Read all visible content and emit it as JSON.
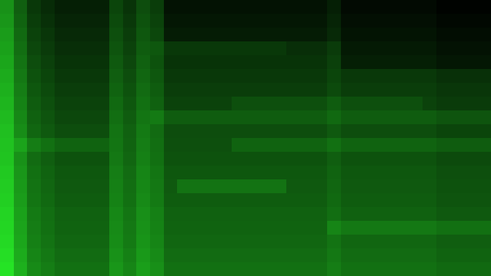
{
  "chart_data": {
    "type": "heatmap",
    "color": "#2aff2a",
    "tick_labels": false,
    "zlim": [
      0,
      100
    ],
    "z": [
      [
        57,
        37,
        22,
        17,
        12,
        12,
        12,
        12,
        27,
        20,
        30,
        24,
        7,
        7,
        7,
        7,
        7,
        7,
        7,
        7,
        7,
        7,
        7,
        7,
        12,
        4,
        4,
        4,
        4,
        4,
        4,
        4,
        1,
        1,
        1,
        1
      ],
      [
        59,
        39,
        24,
        19,
        14,
        14,
        14,
        14,
        29,
        22,
        32,
        26,
        9,
        9,
        9,
        9,
        9,
        9,
        9,
        9,
        9,
        9,
        9,
        9,
        14,
        6,
        6,
        6,
        6,
        6,
        6,
        6,
        3,
        3,
        3,
        3
      ],
      [
        61,
        41,
        26,
        21,
        16,
        16,
        16,
        16,
        31,
        24,
        34,
        28,
        11,
        11,
        11,
        11,
        11,
        11,
        11,
        11,
        11,
        11,
        11,
        11,
        16,
        8,
        8,
        8,
        8,
        8,
        8,
        8,
        5,
        5,
        5,
        5
      ],
      [
        63,
        43,
        28,
        23,
        18,
        18,
        18,
        18,
        33,
        26,
        36,
        34,
        22,
        22,
        22,
        22,
        22,
        22,
        22,
        22,
        22,
        18,
        18,
        18,
        23,
        10,
        10,
        10,
        10,
        10,
        10,
        10,
        7,
        7,
        7,
        7
      ],
      [
        65,
        45,
        30,
        25,
        20,
        20,
        20,
        20,
        35,
        28,
        38,
        32,
        20,
        20,
        20,
        20,
        20,
        20,
        20,
        20,
        20,
        20,
        20,
        20,
        25,
        12,
        12,
        12,
        12,
        12,
        12,
        12,
        9,
        9,
        9,
        9
      ],
      [
        67,
        47,
        32,
        27,
        22,
        22,
        22,
        22,
        37,
        30,
        40,
        34,
        22,
        22,
        22,
        22,
        22,
        22,
        22,
        22,
        22,
        22,
        22,
        22,
        27,
        22,
        22,
        22,
        22,
        22,
        22,
        22,
        19,
        19,
        19,
        19
      ],
      [
        69,
        49,
        34,
        29,
        24,
        24,
        24,
        24,
        39,
        32,
        42,
        36,
        24,
        24,
        24,
        24,
        24,
        24,
        24,
        24,
        24,
        24,
        24,
        24,
        29,
        24,
        24,
        24,
        24,
        24,
        24,
        24,
        21,
        21,
        21,
        21
      ],
      [
        71,
        51,
        36,
        31,
        26,
        26,
        26,
        26,
        41,
        34,
        44,
        38,
        26,
        26,
        26,
        26,
        26,
        31,
        31,
        31,
        31,
        31,
        31,
        31,
        36,
        31,
        31,
        31,
        31,
        31,
        31,
        26,
        23,
        23,
        23,
        23
      ],
      [
        73,
        53,
        38,
        33,
        28,
        28,
        28,
        28,
        43,
        36,
        46,
        48,
        36,
        36,
        36,
        36,
        36,
        36,
        36,
        36,
        36,
        36,
        36,
        36,
        41,
        36,
        36,
        36,
        36,
        36,
        36,
        36,
        33,
        33,
        33,
        33
      ],
      [
        75,
        55,
        40,
        35,
        30,
        30,
        30,
        30,
        45,
        38,
        48,
        42,
        30,
        30,
        30,
        30,
        30,
        30,
        30,
        30,
        30,
        30,
        30,
        30,
        35,
        30,
        30,
        30,
        30,
        30,
        30,
        30,
        27,
        27,
        27,
        27
      ],
      [
        76,
        64,
        49,
        44,
        39,
        39,
        39,
        39,
        46,
        39,
        49,
        43,
        31,
        31,
        31,
        31,
        31,
        39,
        39,
        39,
        39,
        39,
        39,
        39,
        44,
        39,
        39,
        39,
        39,
        39,
        39,
        39,
        36,
        36,
        36,
        36
      ],
      [
        77,
        57,
        42,
        37,
        32,
        32,
        32,
        32,
        47,
        40,
        50,
        44,
        32,
        32,
        32,
        32,
        32,
        32,
        32,
        32,
        32,
        32,
        32,
        32,
        37,
        32,
        32,
        32,
        32,
        32,
        32,
        32,
        29,
        29,
        29,
        29
      ],
      [
        79,
        59,
        44,
        39,
        34,
        34,
        34,
        34,
        49,
        42,
        52,
        46,
        34,
        34,
        34,
        34,
        34,
        34,
        34,
        34,
        34,
        34,
        34,
        34,
        39,
        34,
        34,
        34,
        34,
        34,
        34,
        34,
        31,
        31,
        31,
        31
      ],
      [
        80,
        60,
        45,
        40,
        35,
        35,
        35,
        35,
        50,
        43,
        53,
        47,
        35,
        45,
        45,
        45,
        45,
        45,
        45,
        45,
        45,
        35,
        35,
        35,
        40,
        35,
        35,
        35,
        35,
        35,
        35,
        35,
        32,
        32,
        32,
        32
      ],
      [
        81,
        61,
        46,
        41,
        36,
        36,
        36,
        36,
        51,
        44,
        54,
        48,
        36,
        36,
        36,
        36,
        36,
        36,
        36,
        36,
        36,
        36,
        36,
        36,
        41,
        36,
        36,
        36,
        36,
        36,
        36,
        36,
        33,
        33,
        33,
        33
      ],
      [
        83,
        63,
        48,
        43,
        38,
        38,
        38,
        38,
        53,
        46,
        56,
        50,
        38,
        38,
        38,
        38,
        38,
        38,
        38,
        38,
        38,
        38,
        38,
        38,
        43,
        38,
        38,
        38,
        38,
        38,
        38,
        38,
        35,
        35,
        35,
        35
      ],
      [
        84,
        64,
        49,
        44,
        39,
        39,
        39,
        39,
        54,
        47,
        57,
        51,
        39,
        39,
        39,
        39,
        39,
        39,
        39,
        39,
        39,
        39,
        39,
        39,
        52,
        47,
        47,
        47,
        47,
        47,
        47,
        47,
        44,
        44,
        44,
        44
      ],
      [
        85,
        65,
        50,
        45,
        40,
        40,
        40,
        40,
        55,
        48,
        58,
        52,
        40,
        40,
        40,
        40,
        40,
        40,
        40,
        40,
        40,
        40,
        40,
        40,
        45,
        40,
        40,
        40,
        40,
        40,
        40,
        40,
        37,
        37,
        37,
        37
      ],
      [
        87,
        67,
        52,
        47,
        42,
        42,
        42,
        42,
        57,
        50,
        60,
        54,
        42,
        42,
        42,
        42,
        42,
        42,
        42,
        42,
        42,
        42,
        42,
        42,
        47,
        42,
        42,
        42,
        42,
        42,
        42,
        42,
        39,
        39,
        39,
        39
      ],
      [
        89,
        69,
        54,
        49,
        44,
        44,
        44,
        44,
        59,
        52,
        62,
        56,
        44,
        44,
        44,
        44,
        44,
        44,
        44,
        44,
        44,
        44,
        44,
        44,
        49,
        44,
        44,
        44,
        44,
        44,
        44,
        44,
        41,
        41,
        41,
        41
      ]
    ]
  }
}
